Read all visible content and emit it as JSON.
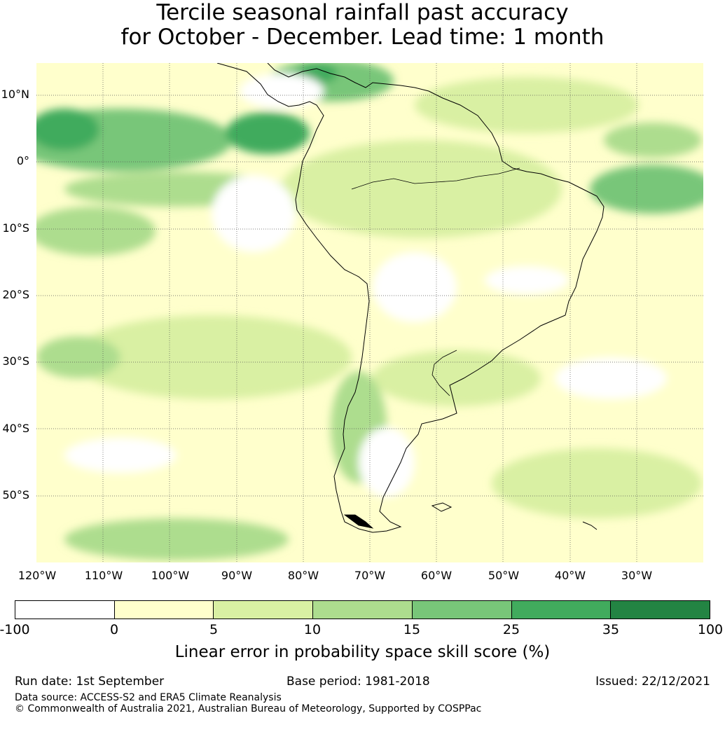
{
  "title_line1": "Tercile seasonal rainfall past accuracy",
  "title_line2": "for October - December. Lead time: 1 month",
  "map": {
    "latitude_labels": [
      "10°N",
      "0°",
      "10°S",
      "20°S",
      "30°S",
      "40°S",
      "50°S"
    ],
    "longitude_labels": [
      "120°W",
      "110°W",
      "100°W",
      "90°W",
      "80°W",
      "70°W",
      "60°W",
      "50°W",
      "40°W",
      "30°W"
    ]
  },
  "colorbar": {
    "ticks": [
      "-100",
      "0",
      "5",
      "10",
      "15",
      "25",
      "35",
      "100"
    ],
    "colors": [
      "#ffffff",
      "#ffffcc",
      "#d9f0a3",
      "#addd8e",
      "#78c679",
      "#41ab5d",
      "#238443"
    ],
    "label": "Linear error in probability space skill score (%)"
  },
  "footer": {
    "run_date": "Run date: 1st September",
    "base_period": "Base period: 1981-2018",
    "issued": "Issued: 22/12/2021",
    "data_source": "Data source: ACCESS-S2 and ERA5 Climate Reanalysis",
    "copyright": "© Commonwealth of Australia 2021, Australian Bureau of Meteorology, Supported by COSPPac"
  }
}
